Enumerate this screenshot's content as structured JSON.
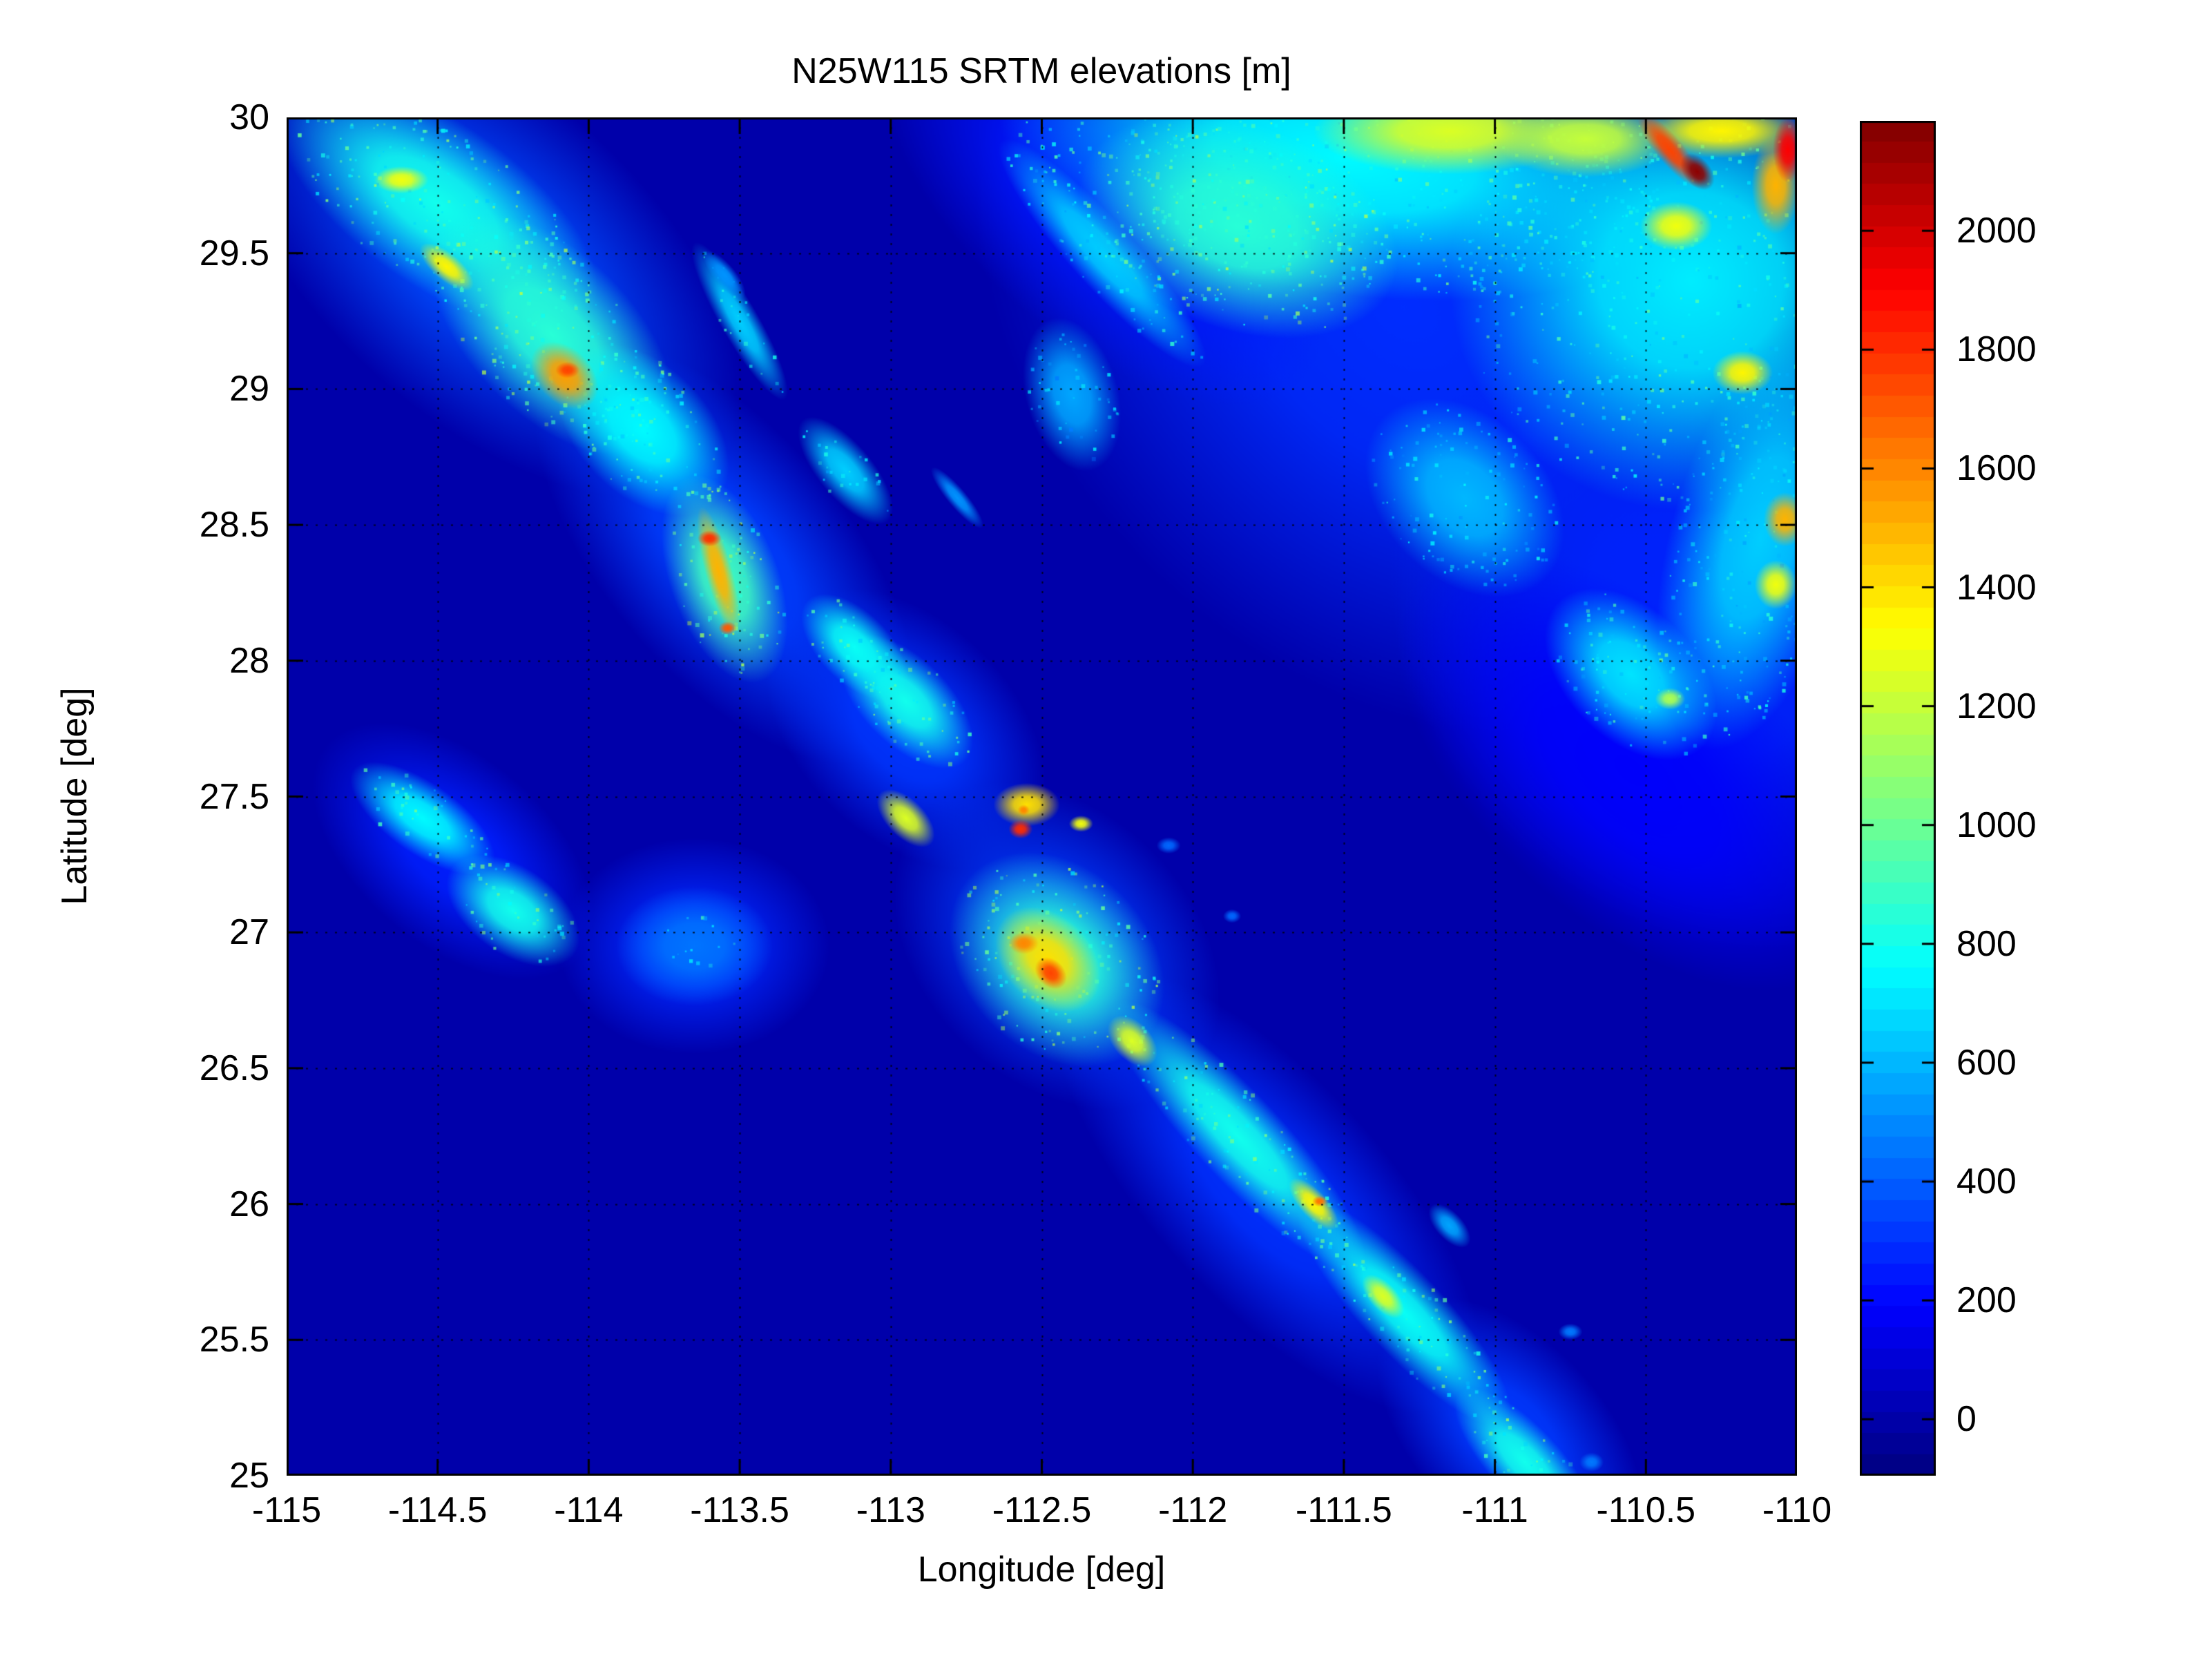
{
  "figure": {
    "background_color": "#ffffff",
    "axes_border_color": "#000000",
    "grid_style": "dotted-black"
  },
  "chart_data": {
    "type": "heatmap",
    "title": "N25W115 SRTM elevations [m]",
    "xlabel": "Longitude [deg]",
    "ylabel": "Latitude [deg]",
    "units": "m",
    "xlim": [
      -115,
      -110
    ],
    "ylim": [
      25,
      30
    ],
    "xticks": [
      -115,
      -114.5,
      -114,
      -113.5,
      -113,
      -112.5,
      -112,
      -111.5,
      -111,
      -110.5,
      -110
    ],
    "yticks": [
      25,
      25.5,
      26,
      26.5,
      27,
      27.5,
      28,
      28.5,
      29,
      29.5,
      30
    ],
    "grid": true,
    "colormap": "jet",
    "colormap_levels": 64,
    "sea_level_elevation": 0,
    "colorbar": {
      "position": "right",
      "vmin": -95,
      "vmax": 2185,
      "ticks": [
        0,
        200,
        400,
        600,
        800,
        1000,
        1200,
        1400,
        1600,
        1800,
        2000
      ]
    },
    "speckle_seed": 42,
    "features_key": "x=longitude[deg], y=latitude[deg], rx/ry=radii[deg], rot=rotation[deg CW], e=peak elevation[m], s=1 speckled texture, h=1 speckles only",
    "features": [
      {
        "n": "peninsula-north-base",
        "x": -114.35,
        "y": 29.5,
        "rx": 1.05,
        "ry": 0.6,
        "rot": 42,
        "e": 360
      },
      {
        "n": "peninsula-mid-base",
        "x": -113.55,
        "y": 28.4,
        "rx": 0.85,
        "ry": 0.45,
        "rot": 50,
        "e": 330
      },
      {
        "n": "peninsula-c-base",
        "x": -112.95,
        "y": 27.75,
        "rx": 0.55,
        "ry": 0.4,
        "rot": 45,
        "e": 310
      },
      {
        "n": "peninsula-guadalupe-base",
        "x": -112.45,
        "y": 26.95,
        "rx": 0.62,
        "ry": 0.5,
        "rot": 45,
        "e": 330
      },
      {
        "n": "peninsula-giganta-base",
        "x": -111.75,
        "y": 26.05,
        "rx": 0.95,
        "ry": 0.42,
        "rot": 47,
        "e": 300
      },
      {
        "n": "peninsula-tip-base",
        "x": -110.95,
        "y": 25.15,
        "rx": 0.55,
        "ry": 0.35,
        "rot": 47,
        "e": 320
      },
      {
        "n": "vizcaino-base",
        "x": -114.45,
        "y": 27.3,
        "rx": 0.55,
        "ry": 0.35,
        "rot": 40,
        "e": 260
      },
      {
        "n": "vizcaino-round-base",
        "x": -113.65,
        "y": 26.95,
        "rx": 0.45,
        "ry": 0.4,
        "rot": 0,
        "e": 280
      },
      {
        "n": "mainland-base-north",
        "x": -111.3,
        "y": 29.3,
        "rx": 1.6,
        "ry": 1.35,
        "rot": 45,
        "e": 290
      },
      {
        "n": "mainland-base-east",
        "x": -110.3,
        "y": 28.1,
        "rx": 1.15,
        "ry": 1.05,
        "rot": 45,
        "e": 270
      },
      {
        "n": "mainland-coast-strip",
        "x": -112.3,
        "y": 29.7,
        "rx": 0.9,
        "ry": 0.5,
        "rot": 42,
        "e": 240
      },
      {
        "n": "mainland-coast-south",
        "x": -110.55,
        "y": 27.6,
        "rx": 0.95,
        "ry": 0.55,
        "rot": 42,
        "e": 180
      },
      {
        "n": "peninsula-north-cyan",
        "x": -114.5,
        "y": 29.68,
        "rx": 0.62,
        "ry": 0.3,
        "rot": 35,
        "e": 800,
        "s": 1
      },
      {
        "n": "peninsula-north-cyan2",
        "x": -114.12,
        "y": 29.2,
        "rx": 0.5,
        "ry": 0.3,
        "rot": 45,
        "e": 850,
        "s": 1
      },
      {
        "n": "peninsula-between-cyan",
        "x": -113.82,
        "y": 28.85,
        "rx": 0.34,
        "ry": 0.24,
        "rot": 45,
        "e": 750,
        "s": 1
      },
      {
        "n": "san-borja-cyan",
        "x": -113.55,
        "y": 28.3,
        "rx": 0.36,
        "ry": 0.2,
        "rot": 70,
        "e": 900,
        "s": 1
      },
      {
        "n": "san-francisquito-cyan",
        "x": -113.15,
        "y": 28.7,
        "rx": 0.22,
        "ry": 0.1,
        "rot": 50,
        "e": 650,
        "s": 1
      },
      {
        "n": "peninsula-c-cyan",
        "x": -112.95,
        "y": 27.85,
        "rx": 0.28,
        "ry": 0.16,
        "rot": 45,
        "e": 800,
        "s": 1
      },
      {
        "n": "peninsula-c2-cyan",
        "x": -113.12,
        "y": 28.05,
        "rx": 0.22,
        "ry": 0.13,
        "rot": 45,
        "e": 780,
        "s": 1
      },
      {
        "n": "guadalupe-cyan",
        "x": -112.45,
        "y": 26.9,
        "rx": 0.4,
        "ry": 0.34,
        "rot": 45,
        "e": 850,
        "s": 1
      },
      {
        "n": "giganta-cyan",
        "x": -111.85,
        "y": 26.25,
        "rx": 0.6,
        "ry": 0.16,
        "rot": 47,
        "e": 800,
        "s": 1
      },
      {
        "n": "giganta-cyan2",
        "x": -111.3,
        "y": 25.6,
        "rx": 0.5,
        "ry": 0.15,
        "rot": 47,
        "e": 780,
        "s": 1
      },
      {
        "n": "peninsula-tip-cyan",
        "x": -110.9,
        "y": 25.05,
        "rx": 0.32,
        "ry": 0.13,
        "rot": 47,
        "e": 800,
        "s": 1
      },
      {
        "n": "vizcaino-cyan-a",
        "x": -114.55,
        "y": 27.42,
        "rx": 0.28,
        "ry": 0.13,
        "rot": 35,
        "e": 750,
        "s": 1
      },
      {
        "n": "vizcaino-cyan-b",
        "x": -114.25,
        "y": 27.08,
        "rx": 0.25,
        "ry": 0.16,
        "rot": 35,
        "e": 800,
        "s": 1
      },
      {
        "n": "vizcaino-round-mid",
        "x": -113.65,
        "y": 26.95,
        "rx": 0.26,
        "ry": 0.22,
        "rot": 0,
        "e": 450
      },
      {
        "n": "vizcaino-round-dots",
        "x": -113.63,
        "y": 26.97,
        "rx": 0.13,
        "ry": 0.1,
        "rot": 0,
        "e": 700,
        "s": 1,
        "h": 1
      },
      {
        "n": "mainland-top-cyan",
        "x": -111.5,
        "y": 29.85,
        "rx": 1.15,
        "ry": 0.5,
        "rot": 8,
        "e": 750,
        "s": 1
      },
      {
        "n": "mainland-ne-cyan",
        "x": -110.35,
        "y": 29.4,
        "rx": 0.8,
        "ry": 0.85,
        "rot": 0,
        "e": 720,
        "s": 1
      },
      {
        "n": "mainland-edge-cyan",
        "x": -110.12,
        "y": 28.45,
        "rx": 0.3,
        "ry": 0.8,
        "rot": 15,
        "e": 650,
        "s": 1
      },
      {
        "n": "mainland-mid-cyan",
        "x": -111.1,
        "y": 28.6,
        "rx": 0.38,
        "ry": 0.3,
        "rot": 45,
        "e": 600,
        "s": 1
      },
      {
        "n": "guaymas-cyan",
        "x": -110.55,
        "y": 27.95,
        "rx": 0.34,
        "ry": 0.24,
        "rot": 45,
        "e": 700,
        "s": 1
      },
      {
        "n": "mainland-coastal-ridge-cyan",
        "x": -112.3,
        "y": 29.5,
        "rx": 0.5,
        "ry": 0.12,
        "rot": 48,
        "e": 650,
        "s": 1
      },
      {
        "n": "mainland-green",
        "x": -111.85,
        "y": 29.6,
        "rx": 0.55,
        "ry": 0.38,
        "rot": 20,
        "e": 850,
        "s": 1
      },
      {
        "n": "isla-angel-de-la-guarda",
        "x": -113.5,
        "y": 29.25,
        "rx": 0.3,
        "ry": 0.07,
        "rot": 60,
        "e": 650,
        "s": 1
      },
      {
        "n": "isla-tiburon",
        "x": -112.4,
        "y": 28.98,
        "rx": 0.26,
        "ry": 0.17,
        "rot": 75,
        "e": 560,
        "s": 1
      },
      {
        "n": "isla-san-lorenzo",
        "x": -112.78,
        "y": 28.6,
        "rx": 0.13,
        "ry": 0.035,
        "rot": 50,
        "e": 520
      },
      {
        "n": "islets-bahia-angeles",
        "x": -113.55,
        "y": 29.42,
        "rx": 0.1,
        "ry": 0.04,
        "rot": 50,
        "e": 520
      },
      {
        "n": "isla-carmen",
        "x": -111.15,
        "y": 25.92,
        "rx": 0.09,
        "ry": 0.05,
        "rot": 47,
        "e": 560
      },
      {
        "n": "isla-san-marcos",
        "x": -112.08,
        "y": 27.32,
        "rx": 0.04,
        "ry": 0.03,
        "rot": 0,
        "e": 420
      },
      {
        "n": "isla-ildefonso",
        "x": -111.87,
        "y": 27.06,
        "rx": 0.03,
        "ry": 0.025,
        "rot": 0,
        "e": 420
      },
      {
        "n": "isla-monserrat",
        "x": -110.75,
        "y": 25.53,
        "rx": 0.04,
        "ry": 0.03,
        "rot": 0,
        "e": 460
      },
      {
        "n": "isla-catalina",
        "x": -110.68,
        "y": 25.05,
        "rx": 0.04,
        "ry": 0.035,
        "rot": 0,
        "e": 460
      },
      {
        "n": "peninsula-nw-yellow",
        "x": -114.62,
        "y": 29.77,
        "rx": 0.09,
        "ry": 0.05,
        "rot": 0,
        "e": 1300
      },
      {
        "n": "peninsula-nw-yellow2",
        "x": -114.47,
        "y": 29.45,
        "rx": 0.11,
        "ry": 0.05,
        "rot": 40,
        "e": 1350
      },
      {
        "n": "peninsula-north-orange",
        "x": -114.08,
        "y": 29.05,
        "rx": 0.13,
        "ry": 0.1,
        "rot": 45,
        "e": 1550
      },
      {
        "n": "peninsula-north-red",
        "x": -114.07,
        "y": 29.07,
        "rx": 0.04,
        "ry": 0.03,
        "rot": 0,
        "e": 1750
      },
      {
        "n": "san-borja-orange-ridge",
        "x": -113.57,
        "y": 28.33,
        "rx": 0.22,
        "ry": 0.05,
        "rot": 75,
        "e": 1500
      },
      {
        "n": "san-borja-red1",
        "x": -113.6,
        "y": 28.45,
        "rx": 0.04,
        "ry": 0.03,
        "rot": 0,
        "e": 1800
      },
      {
        "n": "san-borja-red2",
        "x": -113.54,
        "y": 28.12,
        "rx": 0.03,
        "ry": 0.025,
        "rot": 0,
        "e": 1700
      },
      {
        "n": "peninsula-c-yellow",
        "x": -112.95,
        "y": 27.42,
        "rx": 0.12,
        "ry": 0.07,
        "rot": 45,
        "e": 1250
      },
      {
        "n": "tres-virgenes-yellow",
        "x": -112.55,
        "y": 27.47,
        "rx": 0.11,
        "ry": 0.08,
        "rot": 0,
        "e": 1400
      },
      {
        "n": "tres-virgenes-red",
        "x": -112.57,
        "y": 27.38,
        "rx": 0.04,
        "ry": 0.035,
        "rot": 0,
        "e": 1800
      },
      {
        "n": "tres-virgenes-red2",
        "x": -112.56,
        "y": 27.45,
        "rx": 0.02,
        "ry": 0.02,
        "rot": 0,
        "e": 1600
      },
      {
        "n": "east-yellow-dot",
        "x": -112.37,
        "y": 27.4,
        "rx": 0.04,
        "ry": 0.03,
        "rot": 0,
        "e": 1300
      },
      {
        "n": "guadalupe-yellow",
        "x": -112.48,
        "y": 26.9,
        "rx": 0.2,
        "ry": 0.16,
        "rot": 45,
        "e": 1400
      },
      {
        "n": "guadalupe-red",
        "x": -112.47,
        "y": 26.85,
        "rx": 0.06,
        "ry": 0.05,
        "rot": 45,
        "e": 1750
      },
      {
        "n": "guadalupe-orange2",
        "x": -112.56,
        "y": 26.96,
        "rx": 0.05,
        "ry": 0.04,
        "rot": 0,
        "e": 1600
      },
      {
        "n": "guadalupe-tail-yellow",
        "x": -112.2,
        "y": 26.6,
        "rx": 0.1,
        "ry": 0.07,
        "rot": 47,
        "e": 1250
      },
      {
        "n": "giganta-yellow1",
        "x": -111.6,
        "y": 26.0,
        "rx": 0.11,
        "ry": 0.05,
        "rot": 47,
        "e": 1350
      },
      {
        "n": "giganta-red-dot",
        "x": -111.58,
        "y": 26.01,
        "rx": 0.025,
        "ry": 0.02,
        "rot": 0,
        "e": 1650
      },
      {
        "n": "giganta-yellow2",
        "x": -111.37,
        "y": 25.66,
        "rx": 0.09,
        "ry": 0.05,
        "rot": 47,
        "e": 1250
      },
      {
        "n": "sonora-top-yellow1",
        "x": -111.15,
        "y": 29.95,
        "rx": 0.45,
        "ry": 0.16,
        "rot": 0,
        "e": 1250
      },
      {
        "n": "sonora-top-yellow2",
        "x": -110.7,
        "y": 29.92,
        "rx": 0.3,
        "ry": 0.14,
        "rot": 0,
        "e": 1200
      },
      {
        "n": "sonora-top-yellow3",
        "x": -110.25,
        "y": 29.95,
        "rx": 0.28,
        "ry": 0.1,
        "rot": 0,
        "e": 1350
      },
      {
        "n": "sonora-yellow-mid",
        "x": -110.4,
        "y": 29.6,
        "rx": 0.12,
        "ry": 0.09,
        "rot": 0,
        "e": 1300
      },
      {
        "n": "sonora-red-ridge",
        "x": -110.42,
        "y": 29.88,
        "rx": 0.16,
        "ry": 0.05,
        "rot": 50,
        "e": 1750
      },
      {
        "n": "sonora-darkred-peak",
        "x": -110.33,
        "y": 29.8,
        "rx": 0.07,
        "ry": 0.05,
        "rot": 50,
        "e": 2150
      },
      {
        "n": "sonora-edge-orange",
        "x": -110.07,
        "y": 29.75,
        "rx": 0.08,
        "ry": 0.18,
        "rot": 0,
        "e": 1500
      },
      {
        "n": "sonora-edge-red",
        "x": -110.03,
        "y": 29.88,
        "rx": 0.05,
        "ry": 0.12,
        "rot": 0,
        "e": 1900
      },
      {
        "n": "sonora-yellow-29",
        "x": -110.18,
        "y": 29.06,
        "rx": 0.1,
        "ry": 0.08,
        "rot": 0,
        "e": 1350
      },
      {
        "n": "sonora-edge-orange-285",
        "x": -110.04,
        "y": 28.52,
        "rx": 0.07,
        "ry": 0.1,
        "rot": 0,
        "e": 1500
      },
      {
        "n": "sonora-edge-yellow-283",
        "x": -110.07,
        "y": 28.28,
        "rx": 0.07,
        "ry": 0.09,
        "rot": 0,
        "e": 1300
      },
      {
        "n": "guaymas-yellow-dot",
        "x": -110.42,
        "y": 27.86,
        "rx": 0.05,
        "ry": 0.04,
        "rot": 0,
        "e": 1150
      }
    ]
  }
}
